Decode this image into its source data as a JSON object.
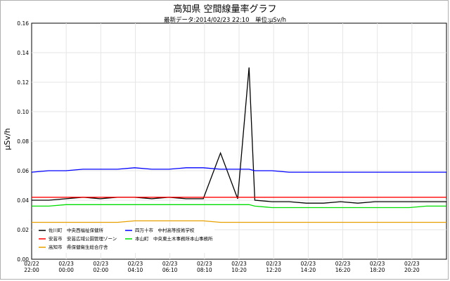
{
  "chart_data": {
    "type": "line",
    "title": "高知県 空間線量率グラフ",
    "subtitle": "最新データ:2014/02/23 22:10　単位:μSv/h",
    "ylabel": "μSv/h",
    "xlabel": "",
    "ylim": [
      0,
      0.16
    ],
    "yticks": [
      "0.00",
      "0.02",
      "0.04",
      "0.06",
      "0.08",
      "0.10",
      "0.12",
      "0.14",
      "0.16"
    ],
    "xticks": [
      {
        "date": "02/22",
        "time": "22:00"
      },
      {
        "date": "02/23",
        "time": "00:00"
      },
      {
        "date": "02/23",
        "time": "02:00"
      },
      {
        "date": "02/23",
        "time": "04:10"
      },
      {
        "date": "02/23",
        "time": "06:10"
      },
      {
        "date": "02/23",
        "time": "08:10"
      },
      {
        "date": "02/23",
        "time": "10:20"
      },
      {
        "date": "02/23",
        "time": "12:20"
      },
      {
        "date": "02/23",
        "time": "14:20"
      },
      {
        "date": "02/23",
        "time": "16:20"
      },
      {
        "date": "02/23",
        "time": "18:20"
      },
      {
        "date": "02/23",
        "time": "20:20"
      }
    ],
    "x": [
      "02/22 22:00",
      "02/22 23:00",
      "02/23 00:00",
      "02/23 01:00",
      "02/23 02:00",
      "02/23 03:00",
      "02/23 04:00",
      "02/23 05:00",
      "02/23 06:00",
      "02/23 07:00",
      "02/23 08:00",
      "02/23 09:00",
      "02/23 10:00",
      "02/23 10:40",
      "02/23 11:00",
      "02/23 12:00",
      "02/23 13:00",
      "02/23 14:00",
      "02/23 15:00",
      "02/23 16:00",
      "02/23 17:00",
      "02/23 18:00",
      "02/23 19:00",
      "02/23 20:00",
      "02/23 21:00",
      "02/23 22:10"
    ],
    "grid": true,
    "legend_position": "bottom-left",
    "series": [
      {
        "name": "佐川町　中央西福祉保健所",
        "color": "#000000",
        "values": [
          0.04,
          0.04,
          0.041,
          0.042,
          0.041,
          0.042,
          0.042,
          0.041,
          0.042,
          0.041,
          0.041,
          0.072,
          0.041,
          0.13,
          0.04,
          0.039,
          0.039,
          0.038,
          0.038,
          0.039,
          0.038,
          0.039,
          0.039,
          0.039,
          0.039,
          0.039
        ]
      },
      {
        "name": "四万十市　中村高等技術学校",
        "color": "#0000ff",
        "values": [
          0.059,
          0.06,
          0.06,
          0.061,
          0.061,
          0.061,
          0.062,
          0.061,
          0.061,
          0.062,
          0.062,
          0.061,
          0.061,
          0.061,
          0.06,
          0.06,
          0.059,
          0.059,
          0.059,
          0.059,
          0.059,
          0.059,
          0.059,
          0.059,
          0.059,
          0.059
        ]
      },
      {
        "name": "安芸市　安芸広域公園管理ゾーン",
        "color": "#ff0000",
        "values": [
          0.042,
          0.042,
          0.042,
          0.042,
          0.042,
          0.042,
          0.042,
          0.042,
          0.042,
          0.042,
          0.042,
          0.042,
          0.042,
          0.042,
          0.042,
          0.042,
          0.042,
          0.042,
          0.042,
          0.042,
          0.042,
          0.042,
          0.042,
          0.042,
          0.042,
          0.042
        ]
      },
      {
        "name": "本山町　中央東土木事務所本山事務所",
        "color": "#00dd00",
        "values": [
          0.036,
          0.036,
          0.037,
          0.037,
          0.037,
          0.037,
          0.037,
          0.037,
          0.037,
          0.037,
          0.037,
          0.037,
          0.037,
          0.037,
          0.036,
          0.035,
          0.035,
          0.035,
          0.035,
          0.035,
          0.035,
          0.035,
          0.035,
          0.035,
          0.036,
          0.036
        ]
      },
      {
        "name": "高知市　県保健衛生総合庁舎",
        "color": "#e8a000",
        "values": [
          0.025,
          0.025,
          0.025,
          0.025,
          0.025,
          0.025,
          0.026,
          0.026,
          0.026,
          0.026,
          0.026,
          0.025,
          0.025,
          0.025,
          0.025,
          0.025,
          0.025,
          0.025,
          0.025,
          0.025,
          0.025,
          0.025,
          0.025,
          0.025,
          0.025,
          0.025
        ]
      }
    ]
  }
}
